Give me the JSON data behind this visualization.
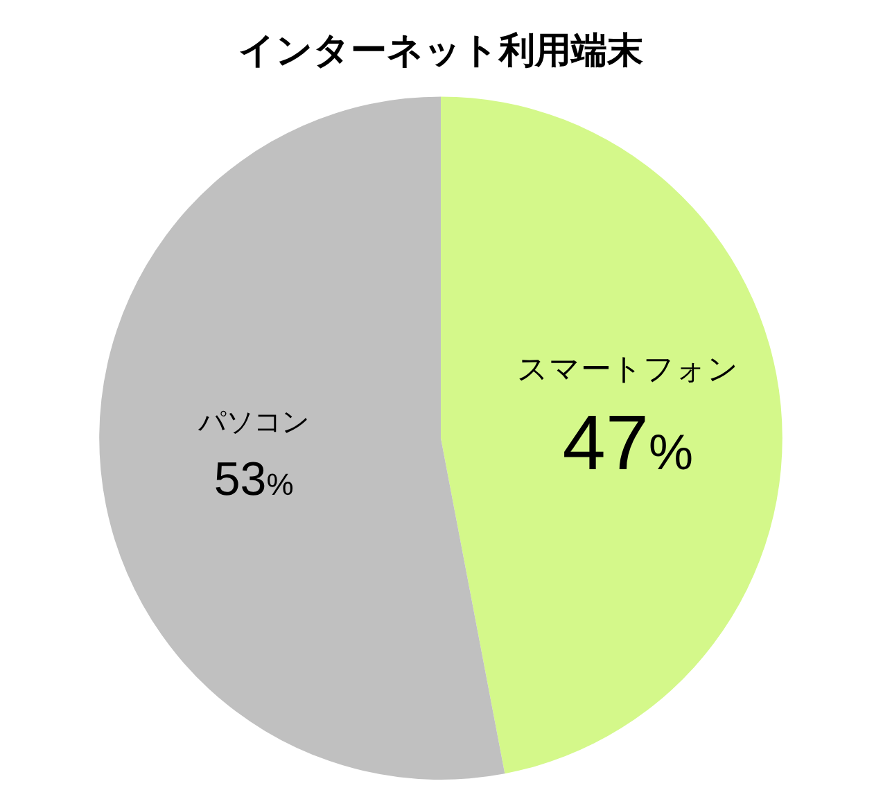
{
  "chart_data": {
    "type": "pie",
    "title": "インターネット利用端末",
    "categories": [
      "スマートフォン",
      "パソコン"
    ],
    "values": [
      47,
      53
    ],
    "colors": [
      "#d4f88a",
      "#c0c0c0"
    ],
    "value_labels": [
      "47%",
      "53%"
    ],
    "legend": false
  }
}
